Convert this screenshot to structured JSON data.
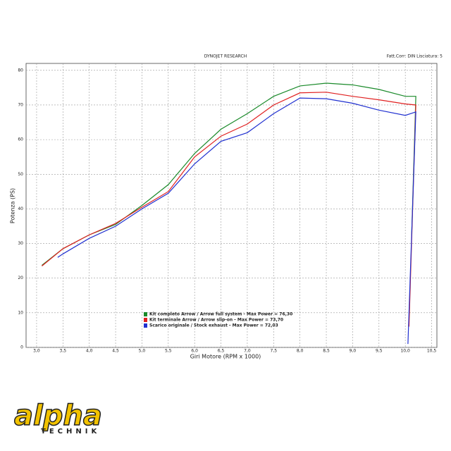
{
  "chart_data": {
    "type": "line",
    "title": "DYNOJET RESEARCH",
    "subtitle": "Fatt.Corr: DIN Lisciatura: 5",
    "x_label": "Giri Motore (RPM x 1000)",
    "y_label": "Potenza (PS)",
    "xlim": [
      2.8,
      10.6
    ],
    "ylim": [
      0,
      82
    ],
    "xticks": [
      {
        "value": 3.0,
        "label": "3,0"
      },
      {
        "value": 3.5,
        "label": "3,5"
      },
      {
        "value": 4.0,
        "label": "4,0"
      },
      {
        "value": 4.5,
        "label": "4,5"
      },
      {
        "value": 5.0,
        "label": "5,0"
      },
      {
        "value": 5.5,
        "label": "5,5"
      },
      {
        "value": 6.0,
        "label": "6,0"
      },
      {
        "value": 6.5,
        "label": "6,5"
      },
      {
        "value": 7.0,
        "label": "7,0"
      },
      {
        "value": 7.5,
        "label": "7,5"
      },
      {
        "value": 8.0,
        "label": "8,0"
      },
      {
        "value": 8.5,
        "label": "8,5"
      },
      {
        "value": 9.0,
        "label": "9,0"
      },
      {
        "value": 9.5,
        "label": "9,5"
      },
      {
        "value": 10.0,
        "label": "10,0"
      },
      {
        "value": 10.5,
        "label": "10,5"
      }
    ],
    "yticks": [
      0,
      10,
      20,
      30,
      40,
      50,
      60,
      70,
      80
    ],
    "grid": true,
    "legend": "bottom-left",
    "series": [
      {
        "name": "Kit completo Arrow / Arrow full system - Max Power = 76,30",
        "color": "#1a8a2a",
        "x": [
          3.1,
          3.5,
          4.0,
          4.5,
          5.0,
          5.5,
          6.0,
          6.5,
          7.0,
          7.5,
          8.0,
          8.5,
          9.0,
          9.5,
          10.0,
          10.2,
          10.12
        ],
        "values": [
          23.7,
          28.5,
          32.5,
          35.5,
          41,
          47,
          56,
          63,
          67.5,
          72.5,
          75.5,
          76.3,
          75.8,
          74.5,
          72.5,
          72.5,
          32
        ]
      },
      {
        "name": "Kit terminale Arrow / Arrow slip-on - Max Power = 73,70",
        "color": "#e02020",
        "x": [
          3.1,
          3.5,
          4.0,
          4.5,
          5.0,
          5.5,
          6.0,
          6.5,
          7.0,
          7.5,
          8.0,
          8.5,
          9.0,
          9.5,
          10.0,
          10.2,
          10.07
        ],
        "values": [
          23.5,
          28.5,
          32.5,
          35.8,
          40.5,
          45,
          55,
          61,
          64.5,
          70,
          73.5,
          73.7,
          72.5,
          71.5,
          70.3,
          70,
          6
        ]
      },
      {
        "name": "Scarico originale / Stock exhaust - Max Power = 72,03",
        "color": "#2030d0",
        "x": [
          3.4,
          3.5,
          4.0,
          4.5,
          5.0,
          5.5,
          6.0,
          6.5,
          7.0,
          7.5,
          8.0,
          8.5,
          9.0,
          9.5,
          10.0,
          10.2,
          10.05
        ],
        "values": [
          26,
          27,
          31.5,
          35,
          40,
          44.5,
          53,
          59.5,
          62,
          67.5,
          72,
          71.8,
          70.5,
          68.5,
          67,
          68,
          1
        ]
      }
    ]
  },
  "logo": {
    "name": "alpha",
    "sub": "TECHNIK"
  }
}
